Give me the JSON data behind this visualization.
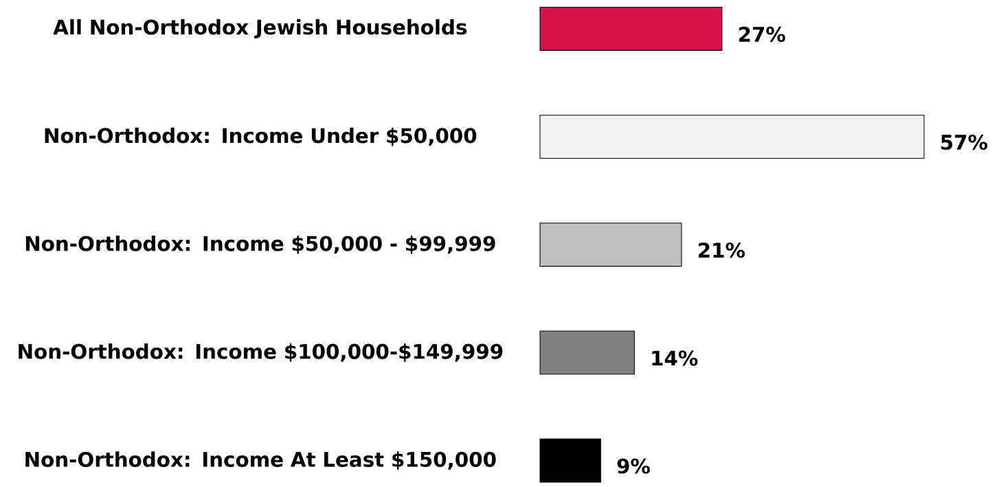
{
  "chart_data": {
    "type": "bar",
    "orientation": "horizontal",
    "categories": [
      "All Non-Orthodox Jewish Households",
      "Non-Orthodox: Income Under $50,000",
      "Non-Orthodox: Income $50,000 - $99,999",
      "Non-Orthodox: Income $100,000-$149,999",
      "Non-Orthodox: Income At Least $150,000"
    ],
    "values": [
      27,
      57,
      21,
      14,
      9
    ],
    "colors": [
      "#d6144a",
      "#f2f2f2",
      "#bfbfbf",
      "#808080",
      "#000000"
    ],
    "value_labels": [
      "27%",
      "57%",
      "21%",
      "14%",
      "9%"
    ],
    "xlim": [
      0,
      57
    ]
  }
}
